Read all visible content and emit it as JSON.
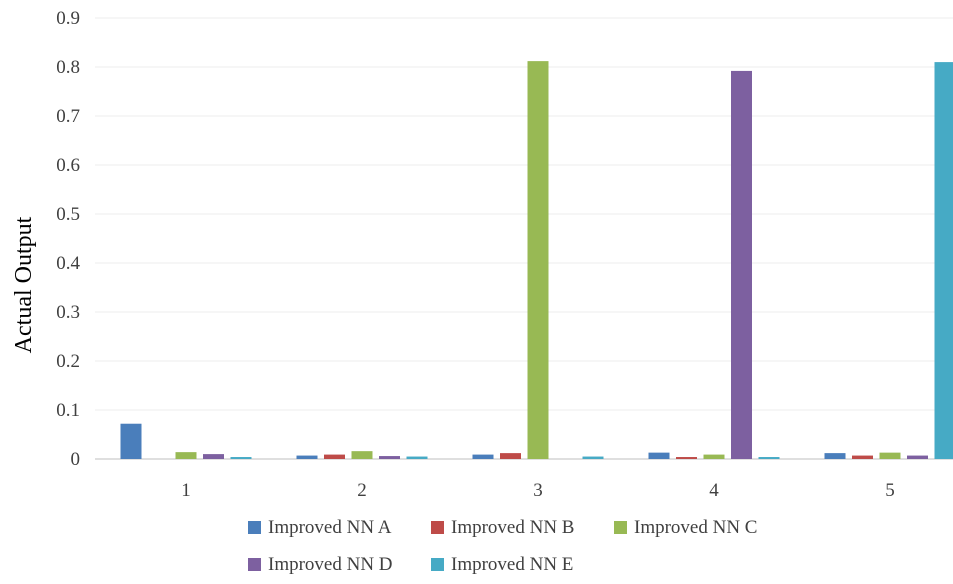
{
  "chart_data": {
    "type": "bar",
    "title": "",
    "xlabel": "",
    "ylabel": "Actual Output",
    "ylim": [
      0,
      0.9
    ],
    "yticks": [
      0,
      0.1,
      0.2,
      0.3,
      0.4,
      0.5,
      0.6,
      0.7,
      0.8,
      0.9
    ],
    "ytick_labels": [
      "0",
      "0.1",
      "0.2",
      "0.3",
      "0.4",
      "0.5",
      "0.6",
      "0.7",
      "0.8",
      "0.9"
    ],
    "categories": [
      "1",
      "2",
      "3",
      "4",
      "5"
    ],
    "grid": true,
    "legend": "bottom",
    "series": [
      {
        "name": "Improved NN A",
        "color": "#4a7ebb",
        "values": [
          0.072,
          0.007,
          0.009,
          0.013,
          0.012
        ]
      },
      {
        "name": "Improved NN B",
        "color": "#be4b48",
        "values": [
          0.0,
          0.009,
          0.012,
          0.004,
          0.007
        ]
      },
      {
        "name": "Improved NN C",
        "color": "#98b954",
        "values": [
          0.014,
          0.016,
          0.812,
          0.009,
          0.013
        ]
      },
      {
        "name": "Improved NN D",
        "color": "#7d60a0",
        "values": [
          0.01,
          0.006,
          0.0,
          0.792,
          0.007
        ]
      },
      {
        "name": "Improved NN E",
        "color": "#46aac5",
        "values": [
          0.004,
          0.005,
          0.005,
          0.004,
          0.81
        ]
      }
    ]
  }
}
